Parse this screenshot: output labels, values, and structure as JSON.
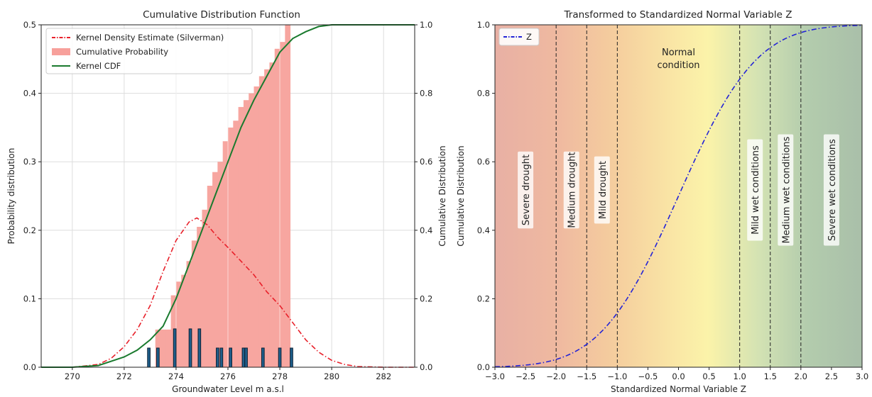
{
  "chart_data": [
    {
      "type": "bar",
      "title": "Cumulative Distribution Function",
      "xlabel": "Groundwater Level m a.s.l",
      "ylabel": "Probability distribution",
      "ylabel_right": "Cumulative Distribution",
      "xlim": [
        268.8,
        283.2
      ],
      "ylim": [
        0,
        0.5
      ],
      "ylim_right": [
        0,
        1.0
      ],
      "xticks": [
        270,
        272,
        274,
        276,
        278,
        280,
        282
      ],
      "yticks": [
        0.0,
        0.1,
        0.2,
        0.3,
        0.4,
        0.5
      ],
      "yticks_right": [
        0.0,
        0.2,
        0.4,
        0.6,
        0.8,
        1.0
      ],
      "grid": true,
      "legend_position": "top-left",
      "legend": [
        {
          "label": "Kernel Density Estimate (Silverman)",
          "color": "#e8202a",
          "style": "dashdot"
        },
        {
          "label": "Cumulative Probability",
          "color": "#f7a09b",
          "style": "patch"
        },
        {
          "label": "Kernel CDF",
          "color": "#1a7a2e",
          "style": "solid"
        }
      ],
      "kde_pdf": {
        "x": [
          268.8,
          270,
          271,
          271.5,
          272,
          272.5,
          273,
          273.5,
          274,
          274.5,
          274.8,
          275.2,
          275.6,
          276,
          276.5,
          277,
          277.5,
          278,
          278.5,
          279,
          279.5,
          280,
          280.5,
          281,
          282,
          283.2
        ],
        "y": [
          0.0,
          0.0,
          0.004,
          0.013,
          0.03,
          0.055,
          0.09,
          0.14,
          0.185,
          0.212,
          0.218,
          0.208,
          0.19,
          0.175,
          0.155,
          0.135,
          0.11,
          0.09,
          0.065,
          0.04,
          0.022,
          0.01,
          0.004,
          0.001,
          0.0,
          0.0
        ]
      },
      "kernel_cdf": {
        "x": [
          268.8,
          270,
          271,
          272,
          272.5,
          273,
          273.5,
          274,
          274.5,
          275,
          275.5,
          276,
          276.5,
          277,
          277.5,
          278,
          278.5,
          279,
          279.5,
          280,
          280.5,
          281,
          283.2
        ],
        "y": [
          0.0,
          0.0,
          0.005,
          0.03,
          0.05,
          0.08,
          0.12,
          0.2,
          0.3,
          0.4,
          0.5,
          0.6,
          0.7,
          0.78,
          0.85,
          0.92,
          0.96,
          0.98,
          0.995,
          1.0,
          1.0,
          1.0,
          1.0
        ]
      },
      "cumulative_bars": {
        "edges": [
          273.2,
          273.4,
          273.6,
          273.8,
          274.0,
          274.2,
          274.4,
          274.6,
          274.8,
          275.0,
          275.2,
          275.4,
          275.6,
          275.8,
          276.0,
          276.2,
          276.4,
          276.6,
          276.8,
          277.0,
          277.2,
          277.4,
          277.6,
          277.8,
          278.0,
          278.2,
          278.4
        ],
        "values": [
          0.11,
          0.11,
          0.11,
          0.21,
          0.25,
          0.27,
          0.31,
          0.37,
          0.41,
          0.46,
          0.53,
          0.57,
          0.6,
          0.66,
          0.7,
          0.72,
          0.76,
          0.78,
          0.8,
          0.82,
          0.85,
          0.87,
          0.89,
          0.93,
          0.95,
          1.0
        ]
      },
      "observation_bars": {
        "x": [
          272.95,
          273.3,
          273.95,
          274.55,
          274.9,
          275.6,
          275.75,
          276.1,
          276.6,
          276.7,
          277.35,
          278.0,
          278.45
        ],
        "heights": [
          0.028,
          0.028,
          0.056,
          0.056,
          0.056,
          0.028,
          0.028,
          0.028,
          0.028,
          0.028,
          0.028,
          0.028,
          0.028
        ]
      }
    },
    {
      "type": "line",
      "title": "Transformed to Standardized Normal Variable Z",
      "xlabel": "Standardized Normal Variable Z",
      "ylabel": "Cumulative Distribution",
      "xlim": [
        -3.0,
        3.0
      ],
      "ylim": [
        0,
        1.0
      ],
      "xticks": [
        -3.0,
        -2.5,
        -2.0,
        -1.5,
        -1.0,
        -0.5,
        0.0,
        0.5,
        1.0,
        1.5,
        2.0,
        2.5,
        3.0
      ],
      "yticks": [
        0.0,
        0.2,
        0.4,
        0.6,
        0.8,
        1.0
      ],
      "grid": false,
      "legend_position": "top-left",
      "series": [
        {
          "name": "Z",
          "color": "#2323d6",
          "style": "dashdot"
        }
      ],
      "thresholds": [
        -2.0,
        -1.5,
        -1.0,
        1.0,
        1.5,
        2.0
      ],
      "zones": [
        {
          "label": "Severe drought",
          "x": -2.5,
          "rotated": true
        },
        {
          "label": "Medium drought",
          "x": -1.75,
          "rotated": true
        },
        {
          "label": "Mild drought",
          "x": -1.25,
          "rotated": true
        },
        {
          "label": "Normal\ncondition",
          "x": 0.0,
          "rotated": false
        },
        {
          "label": "Mild wet conditions",
          "x": 1.25,
          "rotated": true
        },
        {
          "label": "Medium wet conditions",
          "x": 1.75,
          "rotated": true
        },
        {
          "label": "Severe wet conditions",
          "x": 2.5,
          "rotated": true
        }
      ]
    }
  ]
}
